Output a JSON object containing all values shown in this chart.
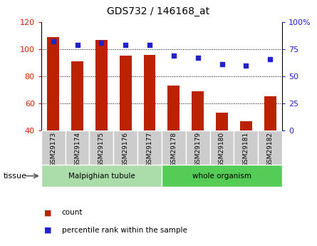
{
  "title": "GDS732 / 146168_at",
  "categories": [
    "GSM29173",
    "GSM29174",
    "GSM29175",
    "GSM29176",
    "GSM29177",
    "GSM29178",
    "GSM29179",
    "GSM29180",
    "GSM29181",
    "GSM29182"
  ],
  "counts": [
    109,
    91,
    107,
    95,
    96,
    73,
    69,
    53,
    47,
    65
  ],
  "percentiles": [
    82,
    79,
    81,
    79,
    79,
    69,
    67,
    61,
    60,
    66
  ],
  "ylim_left": [
    40,
    120
  ],
  "ylim_right": [
    0,
    100
  ],
  "yticks_left": [
    40,
    60,
    80,
    100,
    120
  ],
  "yticks_right": [
    0,
    25,
    50,
    75,
    100
  ],
  "ytick_labels_right": [
    "0",
    "25",
    "50",
    "75",
    "100%"
  ],
  "bar_color": "#bb2200",
  "dot_color": "#2222cc",
  "tissue_groups": [
    {
      "label": "Malpighian tubule",
      "start": 0,
      "end": 5,
      "color": "#aaddaa"
    },
    {
      "label": "whole organism",
      "start": 5,
      "end": 10,
      "color": "#55cc55"
    }
  ],
  "tissue_label": "tissue",
  "legend_count_label": "count",
  "legend_pct_label": "percentile rank within the sample",
  "tick_color_left": "#cc2200",
  "tick_color_right": "#2222cc",
  "background_xtick": "#cccccc"
}
